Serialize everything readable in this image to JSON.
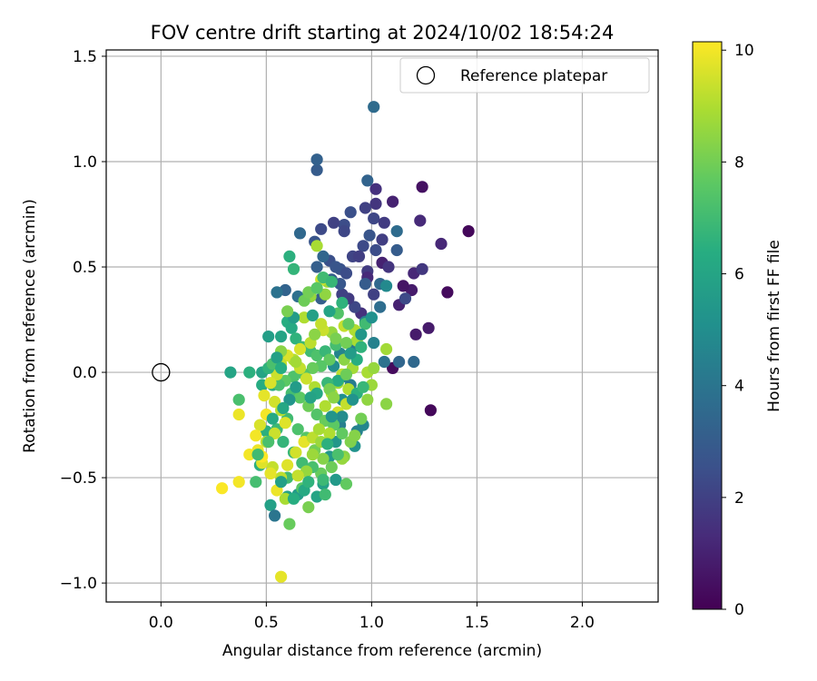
{
  "chart_data": {
    "type": "scatter",
    "title": "FOV centre drift starting at 2024/10/02 18:54:24",
    "xlabel": "Angular distance from reference (arcmin)",
    "ylabel": "Rotation from reference (arcmin)",
    "xlim": [
      -0.26,
      2.36
    ],
    "ylim": [
      -1.09,
      1.53
    ],
    "xticks": [
      0.0,
      0.5,
      1.0,
      1.5,
      2.0
    ],
    "xtick_labels": [
      "0.0",
      "0.5",
      "1.0",
      "1.5",
      "2.0"
    ],
    "yticks": [
      -1.0,
      -0.5,
      0.0,
      0.5,
      1.0,
      1.5
    ],
    "ytick_labels": [
      "−1.0",
      "−0.5",
      "0.0",
      "0.5",
      "1.0",
      "1.5"
    ],
    "grid": true,
    "colormap": "viridis",
    "colorbar": {
      "label": "Hours from first FF file",
      "range": [
        0,
        10.15
      ],
      "ticks": [
        0,
        2,
        4,
        6,
        8,
        10
      ],
      "tick_labels": [
        "0",
        "2",
        "4",
        "6",
        "8",
        "10"
      ]
    },
    "legend": {
      "placement": "top-right",
      "entries": [
        "Reference platepar"
      ]
    },
    "reference_point": {
      "x": 0.0,
      "y": 0.0,
      "label": "Reference platepar"
    },
    "points": [
      [
        1.46,
        0.67,
        0.2
      ],
      [
        1.28,
        -0.18,
        0.2
      ],
      [
        1.36,
        0.38,
        0.3
      ],
      [
        1.24,
        0.88,
        0.5
      ],
      [
        1.1,
        0.02,
        0.3
      ],
      [
        1.27,
        0.21,
        0.8
      ],
      [
        1.21,
        0.18,
        0.8
      ],
      [
        1.13,
        0.32,
        1.0
      ],
      [
        1.19,
        0.39,
        0.8
      ],
      [
        1.15,
        0.41,
        0.6
      ],
      [
        1.33,
        0.61,
        1.2
      ],
      [
        1.23,
        0.72,
        1.3
      ],
      [
        1.1,
        0.81,
        1.0
      ],
      [
        1.02,
        0.87,
        1.5
      ],
      [
        1.02,
        0.8,
        1.6
      ],
      [
        1.05,
        0.52,
        1.0
      ],
      [
        1.2,
        0.47,
        1.2
      ],
      [
        1.24,
        0.49,
        1.7
      ],
      [
        1.16,
        0.35,
        2.3
      ],
      [
        1.08,
        0.5,
        1.6
      ],
      [
        0.98,
        0.48,
        1.8
      ],
      [
        1.01,
        0.37,
        2.0
      ],
      [
        0.98,
        0.45,
        1.3
      ],
      [
        0.95,
        0.28,
        1.5
      ],
      [
        0.92,
        0.31,
        2.2
      ],
      [
        0.89,
        0.35,
        1.8
      ],
      [
        0.86,
        0.37,
        2.0
      ],
      [
        0.91,
        0.55,
        2.1
      ],
      [
        0.96,
        0.6,
        2.3
      ],
      [
        1.02,
        0.58,
        2.4
      ],
      [
        1.05,
        0.63,
        1.9
      ],
      [
        1.01,
        0.73,
        2.2
      ],
      [
        0.97,
        0.78,
        2.0
      ],
      [
        0.9,
        0.76,
        2.5
      ],
      [
        0.87,
        0.7,
        2.4
      ],
      [
        0.82,
        0.71,
        2.0
      ],
      [
        0.87,
        0.67,
        2.2
      ],
      [
        0.76,
        0.68,
        2.3
      ],
      [
        0.73,
        0.62,
        2.7
      ],
      [
        0.8,
        0.53,
        2.5
      ],
      [
        0.85,
        0.49,
        2.6
      ],
      [
        0.88,
        0.47,
        2.4
      ],
      [
        0.85,
        0.42,
        2.8
      ],
      [
        0.81,
        0.44,
        3.0
      ],
      [
        0.83,
        0.5,
        2.7
      ],
      [
        0.77,
        0.55,
        3.4
      ],
      [
        0.74,
        0.5,
        3.1
      ],
      [
        0.76,
        0.35,
        3.1
      ],
      [
        0.7,
        0.37,
        3.2
      ],
      [
        0.65,
        0.36,
        3.8
      ],
      [
        0.59,
        0.39,
        3.3
      ],
      [
        0.55,
        0.38,
        3.9
      ],
      [
        0.66,
        0.66,
        3.5
      ],
      [
        0.74,
        0.96,
        3.0
      ],
      [
        0.74,
        1.01,
        3.2
      ],
      [
        1.01,
        1.26,
        3.6
      ],
      [
        0.98,
        0.91,
        3.3
      ],
      [
        1.12,
        0.58,
        3.0
      ],
      [
        1.12,
        0.67,
        3.6
      ],
      [
        1.04,
        0.42,
        3.5
      ],
      [
        1.04,
        0.31,
        3.7
      ],
      [
        0.97,
        0.24,
        4.3
      ],
      [
        1.01,
        0.14,
        4.5
      ],
      [
        1.06,
        0.05,
        3.9
      ],
      [
        1.13,
        0.05,
        3.4
      ],
      [
        1.2,
        0.05,
        3.5
      ],
      [
        0.91,
        0.12,
        4.2
      ],
      [
        0.85,
        0.09,
        4.6
      ],
      [
        0.82,
        0.03,
        5.0
      ],
      [
        0.87,
        -0.02,
        4.8
      ],
      [
        0.9,
        -0.06,
        4.3
      ],
      [
        0.86,
        -0.13,
        5.1
      ],
      [
        0.85,
        -0.25,
        4.4
      ],
      [
        0.93,
        -0.28,
        4.5
      ],
      [
        0.96,
        -0.25,
        4.7
      ],
      [
        0.92,
        -0.35,
        5.2
      ],
      [
        0.83,
        -0.33,
        5.4
      ],
      [
        0.8,
        -0.4,
        5.5
      ],
      [
        0.83,
        -0.51,
        5.5
      ],
      [
        0.77,
        -0.53,
        5.8
      ],
      [
        0.74,
        -0.59,
        6.0
      ],
      [
        0.65,
        -0.58,
        5.6
      ],
      [
        0.6,
        -0.59,
        5.9
      ],
      [
        0.52,
        -0.63,
        5.8
      ],
      [
        0.54,
        -0.68,
        4.0
      ],
      [
        0.47,
        -0.44,
        6.5
      ],
      [
        0.5,
        -0.28,
        6.5
      ],
      [
        0.48,
        -0.06,
        6.3
      ],
      [
        0.48,
        0.0,
        6.0
      ],
      [
        0.53,
        -0.06,
        6.2
      ],
      [
        0.33,
        0.0,
        6.0
      ],
      [
        0.42,
        0.0,
        6.5
      ],
      [
        0.51,
        0.17,
        5.7
      ],
      [
        0.57,
        0.17,
        6.0
      ],
      [
        0.6,
        0.24,
        6.4
      ],
      [
        0.62,
        0.21,
        6.2
      ],
      [
        0.64,
        0.16,
        6.6
      ],
      [
        0.67,
        0.12,
        6.9
      ],
      [
        0.71,
        0.1,
        7.0
      ],
      [
        0.74,
        0.08,
        7.3
      ],
      [
        0.78,
        0.1,
        6.8
      ],
      [
        0.83,
        0.13,
        7.1
      ],
      [
        0.8,
        0.06,
        7.7
      ],
      [
        0.76,
        0.03,
        7.5
      ],
      [
        0.72,
        0.02,
        7.8
      ],
      [
        0.68,
        -0.01,
        7.4
      ],
      [
        0.63,
        -0.02,
        7.3
      ],
      [
        0.59,
        -0.04,
        7.6
      ],
      [
        0.56,
        -0.06,
        7.2
      ],
      [
        0.62,
        -0.1,
        7.1
      ],
      [
        0.66,
        -0.12,
        7.6
      ],
      [
        0.7,
        -0.16,
        7.9
      ],
      [
        0.74,
        -0.2,
        7.4
      ],
      [
        0.78,
        -0.23,
        7.8
      ],
      [
        0.82,
        -0.25,
        7.6
      ],
      [
        0.86,
        -0.29,
        7.7
      ],
      [
        0.9,
        -0.33,
        8.2
      ],
      [
        0.87,
        -0.4,
        8.3
      ],
      [
        0.81,
        -0.45,
        7.9
      ],
      [
        0.76,
        -0.48,
        7.8
      ],
      [
        0.72,
        -0.45,
        7.2
      ],
      [
        0.67,
        -0.43,
        7.0
      ],
      [
        0.63,
        -0.38,
        6.8
      ],
      [
        0.58,
        -0.33,
        6.7
      ],
      [
        0.55,
        -0.27,
        6.9
      ],
      [
        0.6,
        -0.22,
        7.0
      ],
      [
        0.65,
        -0.27,
        7.3
      ],
      [
        0.69,
        -0.31,
        7.5
      ],
      [
        0.73,
        -0.37,
        8.0
      ],
      [
        0.77,
        -0.41,
        8.3
      ],
      [
        0.61,
        -0.72,
        7.8
      ],
      [
        0.7,
        -0.64,
        8.1
      ],
      [
        0.67,
        -0.55,
        7.5
      ],
      [
        0.6,
        -0.5,
        7.0
      ],
      [
        0.88,
        -0.53,
        7.7
      ],
      [
        0.86,
        -0.41,
        8.6
      ],
      [
        0.92,
        -0.3,
        8.3
      ],
      [
        0.95,
        -0.22,
        8.0
      ],
      [
        0.98,
        -0.13,
        8.5
      ],
      [
        1.0,
        -0.06,
        8.7
      ],
      [
        0.98,
        0.0,
        8.9
      ],
      [
        0.91,
        0.02,
        8.8
      ],
      [
        0.87,
        0.06,
        8.4
      ],
      [
        1.01,
        0.02,
        8.6
      ],
      [
        1.07,
        -0.15,
        8.4
      ],
      [
        1.07,
        0.11,
        8.8
      ],
      [
        0.93,
        0.15,
        8.9
      ],
      [
        0.92,
        0.2,
        9.0
      ],
      [
        0.87,
        0.22,
        9.3
      ],
      [
        0.81,
        0.19,
        8.6
      ],
      [
        0.77,
        0.2,
        9.4
      ],
      [
        0.71,
        0.14,
        9.2
      ],
      [
        0.66,
        0.11,
        9.6
      ],
      [
        0.63,
        0.06,
        9.1
      ],
      [
        0.6,
        0.08,
        9.6
      ],
      [
        0.57,
        0.04,
        9.3
      ],
      [
        0.55,
        -0.01,
        9.4
      ],
      [
        0.52,
        -0.05,
        9.6
      ],
      [
        0.49,
        -0.11,
        9.8
      ],
      [
        0.54,
        -0.14,
        9.5
      ],
      [
        0.57,
        -0.18,
        9.1
      ],
      [
        0.59,
        -0.24,
        9.7
      ],
      [
        0.54,
        -0.29,
        9.4
      ],
      [
        0.5,
        -0.33,
        9.2
      ],
      [
        0.46,
        -0.37,
        9.9
      ],
      [
        0.42,
        -0.39,
        10.0
      ],
      [
        0.48,
        -0.43,
        9.7
      ],
      [
        0.53,
        -0.45,
        9.3
      ],
      [
        0.57,
        -0.5,
        9.2
      ],
      [
        0.55,
        -0.56,
        9.9
      ],
      [
        0.59,
        -0.6,
        8.9
      ],
      [
        0.57,
        -0.97,
        9.8
      ],
      [
        0.29,
        -0.55,
        10.1
      ],
      [
        0.37,
        -0.52,
        10.0
      ],
      [
        0.37,
        -0.2,
        9.9
      ],
      [
        0.47,
        -0.25,
        9.6
      ],
      [
        0.5,
        -0.2,
        10.0
      ],
      [
        0.45,
        -0.3,
        10.0
      ],
      [
        0.48,
        -0.4,
        10.1
      ],
      [
        0.52,
        -0.48,
        9.8
      ],
      [
        0.6,
        -0.44,
        9.7
      ],
      [
        0.64,
        -0.38,
        9.5
      ],
      [
        0.68,
        -0.33,
        9.8
      ],
      [
        0.72,
        -0.31,
        9.2
      ],
      [
        0.75,
        -0.27,
        8.9
      ],
      [
        0.78,
        -0.16,
        9.0
      ],
      [
        0.81,
        -0.1,
        9.1
      ],
      [
        0.84,
        -0.05,
        8.8
      ],
      [
        0.86,
        -0.01,
        9.2
      ],
      [
        0.89,
        -0.08,
        9.0
      ],
      [
        0.88,
        -0.15,
        9.3
      ],
      [
        0.84,
        -0.19,
        9.5
      ],
      [
        0.8,
        -0.29,
        9.0
      ],
      [
        0.76,
        -0.33,
        8.7
      ],
      [
        0.72,
        -0.39,
        8.7
      ],
      [
        0.69,
        -0.47,
        8.6
      ],
      [
        0.65,
        -0.49,
        9.3
      ],
      [
        0.73,
        -0.07,
        9.0
      ],
      [
        0.69,
        -0.03,
        9.4
      ],
      [
        0.66,
        0.02,
        9.3
      ],
      [
        0.64,
        0.05,
        8.8
      ],
      [
        0.68,
        0.26,
        9.0
      ],
      [
        0.76,
        0.23,
        9.3
      ],
      [
        0.79,
        0.43,
        8.8
      ],
      [
        0.76,
        0.44,
        9.5
      ],
      [
        0.74,
        0.6,
        8.9
      ],
      [
        0.71,
        0.36,
        8.6
      ],
      [
        0.73,
        0.18,
        8.4
      ],
      [
        0.78,
        0.37,
        8.5
      ],
      [
        0.84,
        0.28,
        7.4
      ],
      [
        0.89,
        0.23,
        7.7
      ],
      [
        0.88,
        0.14,
        8.0
      ],
      [
        0.83,
        0.16,
        8.1
      ],
      [
        0.97,
        0.23,
        7.0
      ],
      [
        0.95,
        0.12,
        6.6
      ],
      [
        0.86,
        0.33,
        6.6
      ],
      [
        0.8,
        0.29,
        6.0
      ],
      [
        0.72,
        0.27,
        5.8
      ],
      [
        0.63,
        0.26,
        5.6
      ],
      [
        0.6,
        0.29,
        8.1
      ],
      [
        0.68,
        0.34,
        7.9
      ],
      [
        0.7,
        0.38,
        8.0
      ],
      [
        0.57,
        0.1,
        8.4
      ],
      [
        0.55,
        0.04,
        8.5
      ],
      [
        0.51,
        0.02,
        6.6
      ],
      [
        0.53,
        0.04,
        7.2
      ],
      [
        0.55,
        0.07,
        5.8
      ],
      [
        0.57,
        0.02,
        6.4
      ],
      [
        0.61,
        0.55,
        6.5
      ],
      [
        0.63,
        0.49,
        6.7
      ],
      [
        0.74,
        0.4,
        7.5
      ],
      [
        0.77,
        0.45,
        7.0
      ],
      [
        0.81,
        0.43,
        6.8
      ],
      [
        0.93,
        0.06,
        6.4
      ],
      [
        0.84,
        -0.04,
        6.3
      ],
      [
        0.79,
        -0.05,
        6.8
      ],
      [
        0.8,
        -0.08,
        8.1
      ],
      [
        0.82,
        -0.12,
        8.4
      ],
      [
        0.93,
        -0.1,
        6.5
      ],
      [
        0.91,
        -0.13,
        5.2
      ],
      [
        0.86,
        -0.21,
        4.9
      ],
      [
        0.81,
        -0.21,
        5.3
      ],
      [
        0.74,
        -0.1,
        6.1
      ],
      [
        0.71,
        -0.12,
        5.9
      ],
      [
        0.64,
        -0.07,
        5.6
      ],
      [
        0.61,
        -0.13,
        5.3
      ],
      [
        0.58,
        -0.17,
        6.1
      ],
      [
        0.53,
        -0.22,
        6.2
      ],
      [
        0.51,
        -0.33,
        7.2
      ],
      [
        0.46,
        -0.39,
        7.0
      ],
      [
        0.37,
        -0.13,
        7.2
      ],
      [
        0.45,
        -0.52,
        7.1
      ],
      [
        0.57,
        -0.52,
        5.8
      ],
      [
        0.63,
        -0.6,
        6.4
      ],
      [
        0.68,
        -0.56,
        6.2
      ],
      [
        0.7,
        -0.52,
        6.6
      ],
      [
        0.77,
        -0.51,
        6.9
      ],
      [
        0.78,
        -0.58,
        7.0
      ],
      [
        0.84,
        -0.39,
        7.2
      ],
      [
        0.79,
        -0.34,
        6.5
      ],
      [
        0.88,
        -0.01,
        7.9
      ],
      [
        0.96,
        -0.07,
        6.8
      ],
      [
        0.97,
        0.42,
        3.0
      ],
      [
        0.94,
        0.55,
        1.9
      ],
      [
        0.99,
        0.65,
        2.7
      ],
      [
        1.06,
        0.71,
        1.8
      ],
      [
        1.07,
        0.41,
        4.8
      ],
      [
        1.0,
        0.26,
        5.1
      ],
      [
        0.95,
        0.18,
        5.4
      ],
      [
        0.9,
        0.09,
        5.6
      ]
    ]
  }
}
